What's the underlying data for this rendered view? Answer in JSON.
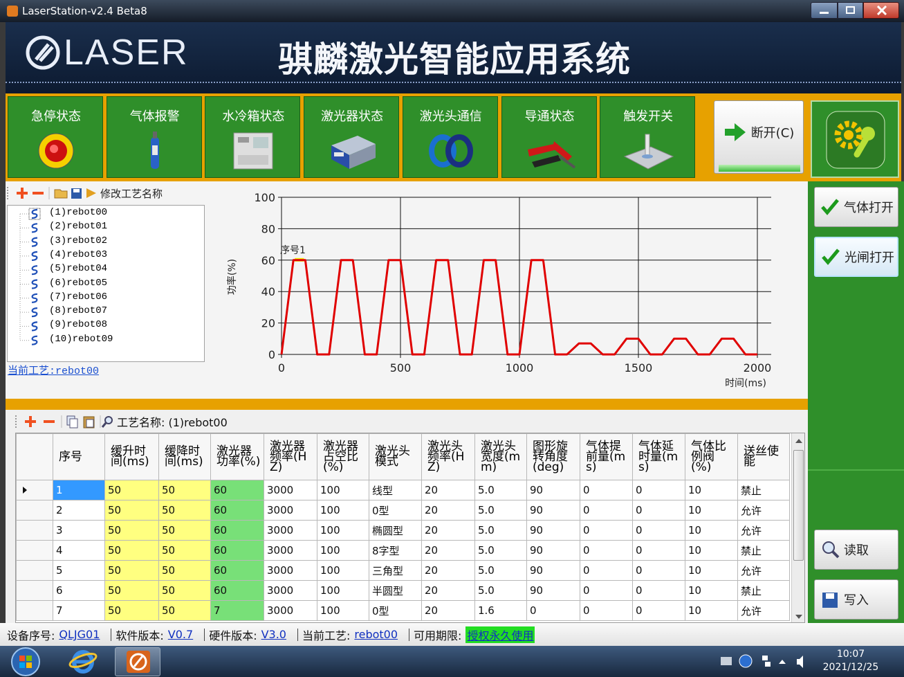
{
  "window": {
    "title": "LaserStation-v2.4 Beta8"
  },
  "header": {
    "logo": "LASER",
    "title": "骐麟激光智能应用系统"
  },
  "status_panel": {
    "items": [
      "急停状态",
      "气体报警",
      "水冷箱状态",
      "激光器状态",
      "激光头通信",
      "导通状态",
      "触发开关"
    ],
    "connect": "断开(C)"
  },
  "controls": {
    "gas": "气体打开",
    "shutter": "光闸打开",
    "read": "读取",
    "write": "写入"
  },
  "process_tree": {
    "toolbar_label": "修改工艺名称",
    "items": [
      "(1)rebot00",
      "(2)rebot01",
      "(3)rebot02",
      "(4)rebot03",
      "(5)rebot04",
      "(6)rebot05",
      "(7)rebot06",
      "(8)rebot07",
      "(9)rebot08",
      "(10)rebot09"
    ],
    "current_link": "当前工艺:rebot00"
  },
  "chart_data": {
    "type": "line",
    "ylabel": "功率(%)",
    "xlabel": "时间(ms)",
    "annotation": "序号1",
    "color": "#e00000",
    "xlim": [
      0,
      2000
    ],
    "ylim": [
      0,
      100
    ],
    "xticks": [
      0,
      500,
      1000,
      1500,
      2000
    ],
    "yticks": [
      0,
      20,
      40,
      60,
      80,
      100
    ],
    "grid": true,
    "x": [
      0,
      50,
      100,
      150,
      200,
      250,
      300,
      350,
      400,
      450,
      500,
      550,
      600,
      650,
      700,
      750,
      800,
      850,
      900,
      950,
      1000,
      1050,
      1100,
      1150,
      1200,
      1250,
      1300,
      1350,
      1400,
      1450,
      1500,
      1550,
      1600,
      1650,
      1700,
      1750,
      1800,
      1850,
      1900,
      1950,
      2000
    ],
    "values": [
      0,
      60,
      60,
      0,
      0,
      60,
      60,
      0,
      0,
      60,
      60,
      0,
      0,
      60,
      60,
      0,
      0,
      60,
      60,
      0,
      0,
      60,
      60,
      0,
      0,
      7,
      7,
      0,
      0,
      10,
      10,
      0,
      0,
      10,
      10,
      0,
      0,
      10,
      10,
      0,
      0
    ]
  },
  "table": {
    "toolbar_label": "工艺名称: (1)rebot00",
    "columns": [
      "序号",
      "缓升时间(ms)",
      "缓降时间(ms)",
      "激光器功率(%)",
      "激光器频率(HZ)",
      "激光器占空比(%)",
      "激光头模式",
      "激光头频率(HZ)",
      "激光头宽度(mm)",
      "图形旋转角度(deg)",
      "气体提前量(ms)",
      "气体延时量(ms)",
      "气体比例阀(%)",
      "送丝使能"
    ],
    "rows": [
      [
        "1",
        "50",
        "50",
        "60",
        "3000",
        "100",
        "线型",
        "20",
        "5.0",
        "90",
        "0",
        "0",
        "10",
        "禁止"
      ],
      [
        "2",
        "50",
        "50",
        "60",
        "3000",
        "100",
        "0型",
        "20",
        "5.0",
        "90",
        "0",
        "0",
        "10",
        "允许"
      ],
      [
        "3",
        "50",
        "50",
        "60",
        "3000",
        "100",
        "椭圆型",
        "20",
        "5.0",
        "90",
        "0",
        "0",
        "10",
        "允许"
      ],
      [
        "4",
        "50",
        "50",
        "60",
        "3000",
        "100",
        "8字型",
        "20",
        "5.0",
        "90",
        "0",
        "0",
        "10",
        "禁止"
      ],
      [
        "5",
        "50",
        "50",
        "60",
        "3000",
        "100",
        "三角型",
        "20",
        "5.0",
        "90",
        "0",
        "0",
        "10",
        "允许"
      ],
      [
        "6",
        "50",
        "50",
        "60",
        "3000",
        "100",
        "半圆型",
        "20",
        "5.0",
        "90",
        "0",
        "0",
        "10",
        "禁止"
      ],
      [
        "7",
        "50",
        "50",
        "7",
        "3000",
        "100",
        "0型",
        "20",
        "1.6",
        "0",
        "0",
        "0",
        "10",
        "允许"
      ]
    ]
  },
  "status_bar": {
    "fields": [
      {
        "label": "设备序号:",
        "value": "QLJG01"
      },
      {
        "label": "软件版本:",
        "value": "V0.7"
      },
      {
        "label": "硬件版本:",
        "value": "V3.0"
      },
      {
        "label": "当前工艺:",
        "value": "rebot00"
      },
      {
        "label": "可用期限:",
        "value": "授权永久使用"
      }
    ]
  },
  "taskbar": {
    "time": "10:07",
    "date": "2021/12/25"
  }
}
